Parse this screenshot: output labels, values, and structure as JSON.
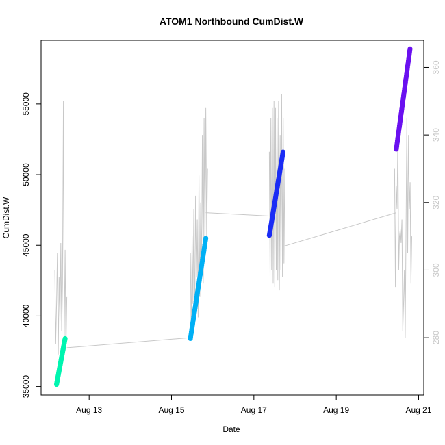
{
  "chart_data": {
    "type": "scatter",
    "title": "ATOM1 Northbound CumDist.W",
    "xlabel": "Date",
    "ylabel": "CumDist.W",
    "y2label": "",
    "xlim": [
      "2023-08-11T20:00",
      "2023-08-21T03:00"
    ],
    "ylim": [
      34400,
      59500
    ],
    "y2lim": [
      263,
      368
    ],
    "x_ticks": [
      {
        "x": "2023-08-13T00:00",
        "label": "Aug 13"
      },
      {
        "x": "2023-08-15T00:00",
        "label": "Aug 15"
      },
      {
        "x": "2023-08-17T00:00",
        "label": "Aug 17"
      },
      {
        "x": "2023-08-19T00:00",
        "label": "Aug 19"
      },
      {
        "x": "2023-08-21T00:00",
        "label": "Aug 21"
      }
    ],
    "y_ticks": [
      35000,
      40000,
      45000,
      50000,
      55000
    ],
    "y2_ticks": [
      280,
      300,
      320,
      340,
      360
    ],
    "grid": false,
    "legend": "none",
    "series": [
      {
        "color": "#00f5b0",
        "points": [
          [
            "2023-08-12T05:00",
            35150
          ],
          [
            "2023-08-12T10:00",
            38400
          ]
        ]
      },
      {
        "color": "#00b0f5",
        "points": [
          [
            "2023-08-15T11:00",
            38400
          ],
          [
            "2023-08-15T20:00",
            45500
          ]
        ]
      },
      {
        "color": "#1a2cf5",
        "points": [
          [
            "2023-08-17T09:00",
            45700
          ],
          [
            "2023-08-17T17:00",
            51600
          ]
        ]
      },
      {
        "color": "#6a10f0",
        "points": [
          [
            "2023-08-20T11:00",
            51800
          ],
          [
            "2023-08-20T19:00",
            58900
          ]
        ]
      }
    ],
    "secondary_series": {
      "color": "#c8c8c8",
      "gaps": [
        [
          [
            "2023-08-12T11:00",
            277
          ],
          [
            "2023-08-15T11:00",
            280
          ]
        ],
        [
          [
            "2023-08-15T20:00",
            317
          ],
          [
            "2023-08-17T09:00",
            316
          ]
        ],
        [
          [
            "2023-08-17T17:00",
            307
          ],
          [
            "2023-08-20T11:00",
            317
          ]
        ]
      ],
      "bursts": [
        {
          "start": "2023-08-12T04:00",
          "end": "2023-08-12T11:00",
          "values": [
            300,
            278,
            290,
            305,
            275,
            298,
            285,
            308,
            282,
            296,
            350,
            280,
            306,
            276,
            292
          ]
        },
        {
          "start": "2023-08-15T11:00",
          "end": "2023-08-15T21:00",
          "values": [
            305,
            280,
            310,
            290,
            318,
            284,
            322,
            298,
            315,
            286,
            328,
            292,
            320,
            300,
            340,
            296,
            345,
            305,
            348,
            310,
            330
          ]
        },
        {
          "start": "2023-08-17T09:00",
          "end": "2023-08-17T18:00",
          "values": [
            335,
            298,
            345,
            300,
            348,
            296,
            350,
            295,
            348,
            300,
            345,
            297,
            350,
            294,
            340,
            300,
            352,
            298,
            345,
            302,
            330
          ]
        },
        {
          "start": "2023-08-20T10:00",
          "end": "2023-08-20T20:00",
          "values": [
            330,
            295,
            325,
            318,
            340,
            300,
            310,
            312,
            308,
            315,
            282,
            290,
            300,
            280,
            312,
            345,
            305,
            340,
            318,
            326,
            296,
            310
          ]
        }
      ]
    }
  }
}
